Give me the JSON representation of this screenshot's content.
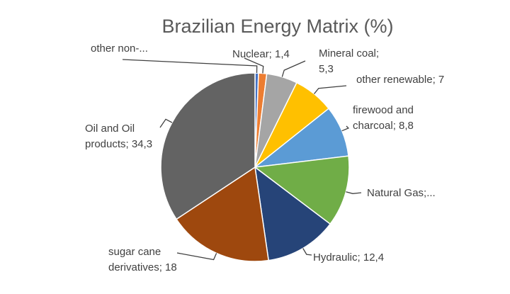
{
  "chart_data": {
    "type": "pie",
    "title": "Brazilian Energy Matrix (%)",
    "slices": [
      {
        "name": "other non-renewable",
        "value": 0.6,
        "color": "#4472C4",
        "label_lines": [
          "other non-..."
        ]
      },
      {
        "name": "Nuclear",
        "value": 1.4,
        "color": "#ED7D31",
        "label_lines": [
          "Nuclear; 1,4"
        ]
      },
      {
        "name": "Mineral coal",
        "value": 5.3,
        "color": "#A5A5A5",
        "label_lines": [
          "Mineral coal;",
          "5,3"
        ]
      },
      {
        "name": "other renewable",
        "value": 7,
        "color": "#FFC000",
        "label_lines": [
          "other renewable; 7"
        ]
      },
      {
        "name": "firewood and charcoal",
        "value": 8.8,
        "color": "#5B9BD5",
        "label_lines": [
          "firewood and",
          "charcoal; 8,8"
        ]
      },
      {
        "name": "Natural Gas",
        "value": 12.2,
        "color": "#70AD47",
        "label_lines": [
          "Natural Gas;..."
        ]
      },
      {
        "name": "Hydraulic",
        "value": 12.4,
        "color": "#264478",
        "label_lines": [
          "Hydraulic; 12,4"
        ]
      },
      {
        "name": "sugar cane derivatives",
        "value": 18,
        "color": "#9E480E",
        "label_lines": [
          "sugar cane",
          "derivatives; 18"
        ]
      },
      {
        "name": "Oil and Oil products",
        "value": 34.3,
        "color": "#636363",
        "label_lines": [
          "Oil and Oil",
          "products; 34,3"
        ]
      }
    ],
    "start_angle_deg": 0,
    "direction": "clockwise",
    "legend": "none",
    "data_labels": "outside-with-leaders"
  }
}
